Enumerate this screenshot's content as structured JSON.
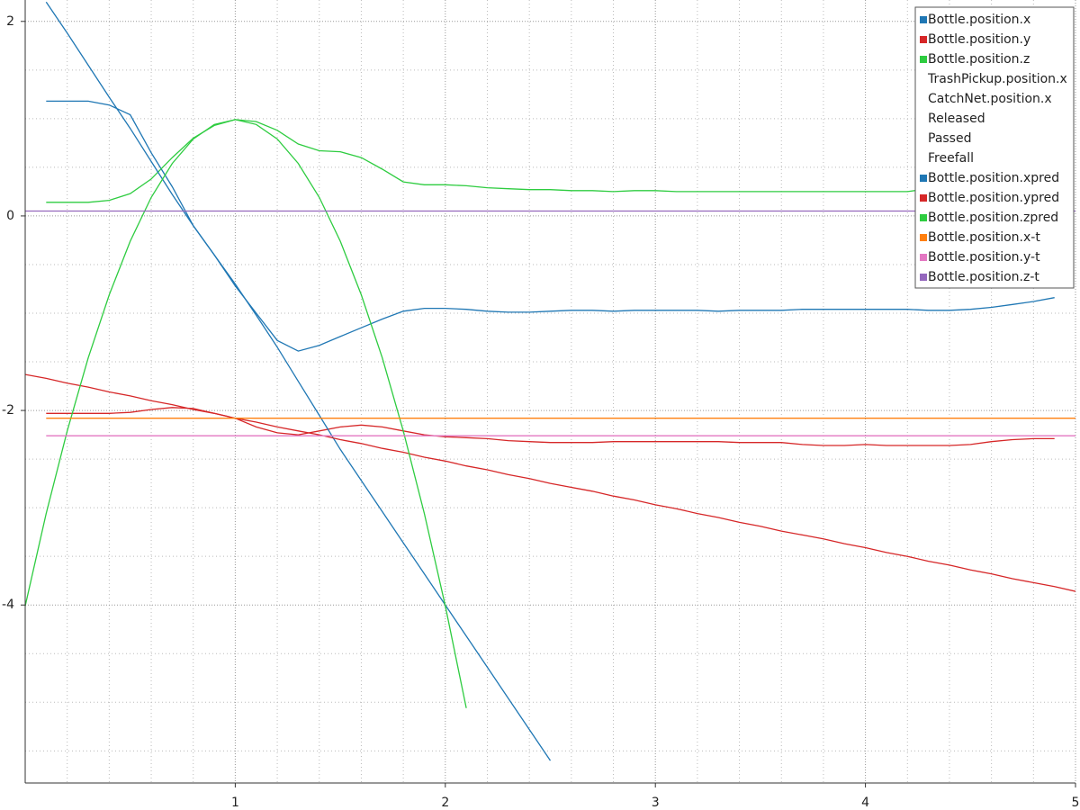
{
  "chart_data": {
    "type": "line",
    "x": [
      0,
      0.1,
      0.2,
      0.3,
      0.4,
      0.5,
      0.6,
      0.7,
      0.8,
      0.9,
      1,
      1.1,
      1.2,
      1.3,
      1.4,
      1.5,
      1.6,
      1.7,
      1.8,
      1.9,
      2,
      2.1,
      2.2,
      2.3,
      2.4,
      2.5,
      2.6,
      2.7,
      2.8,
      2.9,
      3,
      3.1,
      3.2,
      3.3,
      3.4,
      3.5,
      3.6,
      3.7,
      3.8,
      3.9,
      4,
      4.1,
      4.2,
      4.3,
      4.4,
      4.5,
      4.6,
      4.7,
      4.8,
      4.9,
      5
    ],
    "xlim": [
      0,
      5
    ],
    "ylim": [
      -5.83,
      2.22
    ],
    "xticks": [
      1,
      2,
      3,
      4,
      5
    ],
    "yticks": [
      -4,
      -2,
      0,
      2
    ],
    "xminor": [
      0.2,
      0.4,
      0.6,
      0.8,
      1.2,
      1.4,
      1.6,
      1.8,
      2.2,
      2.4,
      2.6,
      2.8,
      3.2,
      3.4,
      3.6,
      3.8,
      4.2,
      4.4,
      4.6,
      4.8
    ],
    "yminor": [
      -5.5,
      -5,
      -4.5,
      -3.5,
      -3,
      -2.5,
      -1.5,
      -1,
      -0.5,
      0.5,
      1,
      1.5
    ],
    "grid": true,
    "legend": "upper right",
    "series": [
      {
        "name": "Bottle.position.x",
        "color": "#1f77b4",
        "visible": true,
        "values": [
          null,
          1.18,
          1.18,
          1.18,
          1.14,
          1.04,
          0.65,
          0.3,
          -0.1,
          -0.4,
          -0.72,
          -1.0,
          -1.28,
          -1.39,
          -1.33,
          -1.24,
          -1.15,
          -1.06,
          -0.98,
          -0.95,
          -0.95,
          -0.96,
          -0.98,
          -0.99,
          -0.99,
          -0.98,
          -0.97,
          -0.97,
          -0.98,
          -0.97,
          -0.97,
          -0.97,
          -0.97,
          -0.98,
          -0.97,
          -0.97,
          -0.97,
          -0.96,
          -0.96,
          -0.96,
          -0.96,
          -0.96,
          -0.96,
          -0.97,
          -0.97,
          -0.96,
          -0.94,
          -0.91,
          -0.88,
          -0.84,
          null
        ]
      },
      {
        "name": "Bottle.position.y",
        "color": "#d62728",
        "visible": true,
        "values": [
          null,
          -2.03,
          -2.03,
          -2.03,
          -2.03,
          -2.02,
          -1.99,
          -1.97,
          -1.98,
          -2.03,
          -2.08,
          -2.17,
          -2.23,
          -2.25,
          -2.21,
          -2.17,
          -2.15,
          -2.17,
          -2.21,
          -2.25,
          -2.27,
          -2.28,
          -2.29,
          -2.31,
          -2.32,
          -2.33,
          -2.33,
          -2.33,
          -2.32,
          -2.32,
          -2.32,
          -2.32,
          -2.32,
          -2.32,
          -2.33,
          -2.33,
          -2.33,
          -2.35,
          -2.36,
          -2.36,
          -2.35,
          -2.36,
          -2.36,
          -2.36,
          -2.36,
          -2.35,
          -2.32,
          -2.3,
          -2.29,
          -2.29,
          null
        ]
      },
      {
        "name": "Bottle.position.z",
        "color": "#2ecc40",
        "visible": true,
        "values": [
          null,
          0.14,
          0.14,
          0.14,
          0.16,
          0.23,
          0.38,
          0.6,
          0.8,
          0.93,
          0.99,
          0.97,
          0.88,
          0.74,
          0.67,
          0.66,
          0.6,
          0.48,
          0.35,
          0.32,
          0.32,
          0.31,
          0.29,
          0.28,
          0.27,
          0.27,
          0.26,
          0.26,
          0.25,
          0.26,
          0.26,
          0.25,
          0.25,
          0.25,
          0.25,
          0.25,
          0.25,
          0.25,
          0.25,
          0.25,
          0.25,
          0.25,
          0.25,
          0.28,
          0.32,
          0.37,
          0.42,
          0.48,
          0.53,
          0.58,
          null
        ]
      },
      {
        "name": "TrashPickup.position.x",
        "visible": false
      },
      {
        "name": "CatchNet.position.x",
        "visible": false
      },
      {
        "name": "Released",
        "visible": false
      },
      {
        "name": "Passed",
        "visible": false
      },
      {
        "name": "Freefall",
        "visible": false
      },
      {
        "name": "Bottle.position.xpred",
        "color": "#1f77b4",
        "visible": true,
        "values": [
          null,
          2.2,
          1.88,
          1.55,
          1.22,
          0.9,
          0.56,
          0.22,
          -0.1,
          -0.4,
          -0.7,
          -1.02,
          -1.35,
          -1.7,
          -2.05,
          -2.4,
          -2.72,
          -3.04,
          -3.36,
          -3.68,
          -4.0,
          -4.32,
          -4.64,
          -4.96,
          -5.28,
          -5.6,
          null,
          null,
          null,
          null,
          null,
          null,
          null,
          null,
          null,
          null,
          null,
          null,
          null,
          null,
          null,
          null,
          null,
          null,
          null,
          null,
          null,
          null,
          null,
          null,
          null
        ]
      },
      {
        "name": "Bottle.position.ypred",
        "color": "#d62728",
        "visible": true,
        "values": [
          -1.63,
          -1.67,
          -1.72,
          -1.76,
          -1.81,
          -1.85,
          -1.9,
          -1.94,
          -1.99,
          -2.03,
          -2.08,
          -2.12,
          -2.17,
          -2.21,
          -2.25,
          -2.3,
          -2.34,
          -2.39,
          -2.43,
          -2.48,
          -2.52,
          -2.57,
          -2.61,
          -2.66,
          -2.7,
          -2.75,
          -2.79,
          -2.83,
          -2.88,
          -2.92,
          -2.97,
          -3.01,
          -3.06,
          -3.1,
          -3.15,
          -3.19,
          -3.24,
          -3.28,
          -3.32,
          -3.37,
          -3.41,
          -3.46,
          -3.5,
          -3.55,
          -3.59,
          -3.64,
          -3.68,
          -3.73,
          -3.77,
          -3.81,
          -3.86
        ]
      },
      {
        "name": "Bottle.position.zpred",
        "color": "#2ecc40",
        "visible": true,
        "values": [
          -4.01,
          -3.06,
          -2.21,
          -1.46,
          -0.81,
          -0.26,
          0.19,
          0.54,
          0.79,
          0.94,
          0.99,
          0.94,
          0.79,
          0.54,
          0.19,
          -0.26,
          -0.81,
          -1.46,
          -2.21,
          -3.06,
          -4.01,
          -5.06,
          null,
          null,
          null,
          null,
          null,
          null,
          null,
          null,
          null,
          null,
          null,
          null,
          null,
          null,
          null,
          null,
          null,
          null,
          null,
          null,
          null,
          null,
          null,
          null,
          null,
          null,
          null,
          null,
          null
        ]
      },
      {
        "name": "Bottle.position.x-t",
        "color": "#ff7f0e",
        "visible": true,
        "values": [
          null,
          -2.08,
          -2.08,
          -2.08,
          -2.08,
          -2.08,
          -2.08,
          -2.08,
          -2.08,
          -2.08,
          -2.08,
          -2.08,
          -2.08,
          -2.08,
          -2.08,
          -2.08,
          -2.08,
          -2.08,
          -2.08,
          -2.08,
          -2.08,
          -2.08,
          -2.08,
          -2.08,
          -2.08,
          -2.08,
          -2.08,
          -2.08,
          -2.08,
          -2.08,
          -2.08,
          -2.08,
          -2.08,
          -2.08,
          -2.08,
          -2.08,
          -2.08,
          -2.08,
          -2.08,
          -2.08,
          -2.08,
          -2.08,
          -2.08,
          -2.08,
          -2.08,
          -2.08,
          -2.08,
          -2.08,
          -2.08,
          -2.08,
          -2.08
        ]
      },
      {
        "name": "Bottle.position.y-t",
        "color": "#e377c2",
        "visible": true,
        "values": [
          null,
          -2.26,
          -2.26,
          -2.26,
          -2.26,
          -2.26,
          -2.26,
          -2.26,
          -2.26,
          -2.26,
          -2.26,
          -2.26,
          -2.26,
          -2.26,
          -2.26,
          -2.26,
          -2.26,
          -2.26,
          -2.26,
          -2.26,
          -2.26,
          -2.26,
          -2.26,
          -2.26,
          -2.26,
          -2.26,
          -2.26,
          -2.26,
          -2.26,
          -2.26,
          -2.26,
          -2.26,
          -2.26,
          -2.26,
          -2.26,
          -2.26,
          -2.26,
          -2.26,
          -2.26,
          -2.26,
          -2.26,
          -2.26,
          -2.26,
          -2.26,
          -2.26,
          -2.26,
          -2.26,
          -2.26,
          -2.26,
          -2.26,
          -2.26
        ]
      },
      {
        "name": "Bottle.position.z-t",
        "color": "#9467bd",
        "visible": true,
        "values": [
          0.05,
          0.05,
          0.05,
          0.05,
          0.05,
          0.05,
          0.05,
          0.05,
          0.05,
          0.05,
          0.05,
          0.05,
          0.05,
          0.05,
          0.05,
          0.05,
          0.05,
          0.05,
          0.05,
          0.05,
          0.05,
          0.05,
          0.05,
          0.05,
          0.05,
          0.05,
          0.05,
          0.05,
          0.05,
          0.05,
          0.05,
          0.05,
          0.05,
          0.05,
          0.05,
          0.05,
          0.05,
          0.05,
          0.05,
          0.05,
          0.05,
          0.05,
          0.05,
          0.05,
          0.05,
          0.05,
          0.05,
          0.05,
          0.05,
          0.05,
          0.05
        ]
      }
    ]
  }
}
